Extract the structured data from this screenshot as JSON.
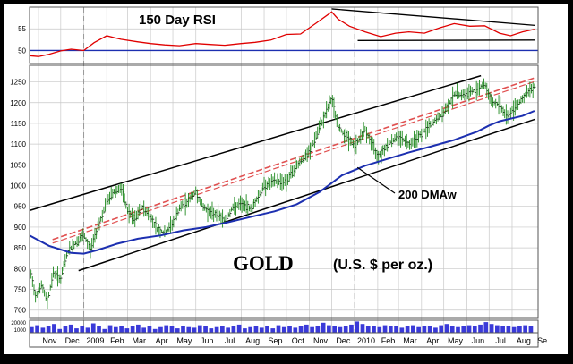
{
  "chart_data": [
    {
      "type": "line",
      "title": "150 Day RSI",
      "ylim": [
        47,
        60
      ],
      "y_ticks": [
        50,
        55
      ],
      "y_tick_labels": [
        "50",
        "55"
      ],
      "reference_line": 50,
      "series": [
        {
          "color": "#e00000",
          "x": [
            "2008-10-20",
            "2008-11-01",
            "2008-11-15",
            "2008-12-01",
            "2008-12-15",
            "2009-01-01",
            "2009-01-15",
            "2009-02-01",
            "2009-02-20",
            "2009-03-15",
            "2009-04-01",
            "2009-04-20",
            "2009-05-10",
            "2009-06-01",
            "2009-06-20",
            "2009-07-10",
            "2009-08-01",
            "2009-08-20",
            "2009-09-10",
            "2009-10-01",
            "2009-10-20",
            "2009-11-10",
            "2009-12-01",
            "2009-12-10",
            "2009-12-25",
            "2010-01-15",
            "2010-02-05",
            "2010-02-25",
            "2010-03-15",
            "2010-04-05",
            "2010-04-25",
            "2010-05-15",
            "2010-06-05",
            "2010-06-25",
            "2010-07-15",
            "2010-07-30",
            "2010-08-15",
            "2010-08-31"
          ],
          "values": [
            48.8,
            48.6,
            49.1,
            49.9,
            50.3,
            50.0,
            51.8,
            53.4,
            52.6,
            52.0,
            51.6,
            51.3,
            51.1,
            51.6,
            51.4,
            51.2,
            51.6,
            51.9,
            52.4,
            53.7,
            53.8,
            56.3,
            58.9,
            57.2,
            55.6,
            54.3,
            53.2,
            54.0,
            54.3,
            54.0,
            55.2,
            56.2,
            55.6,
            55.7,
            54.0,
            53.4,
            54.3,
            54.9
          ]
        }
      ],
      "trend_lines": [
        {
          "color": "#000000",
          "points": [
            [
              "2009-12-01",
              59.6
            ],
            [
              "2010-09-01",
              55.8
            ]
          ]
        },
        {
          "color": "#000000",
          "points": [
            [
              "2010-01-05",
              52.3
            ],
            [
              "2010-09-01",
              52.4
            ]
          ]
        }
      ]
    },
    {
      "type": "line",
      "title": "GOLD",
      "subtitle": "(U.S. $ per oz.)",
      "ylim": [
        680,
        1290
      ],
      "y_ticks": [
        700,
        750,
        800,
        850,
        900,
        950,
        1000,
        1050,
        1100,
        1150,
        1200,
        1250
      ],
      "y_tick_labels": [
        "700",
        "750",
        "800",
        "850",
        "900",
        "950",
        "1000",
        "1050",
        "1100",
        "1150",
        "1200",
        "1250"
      ],
      "series": [
        {
          "color": "#1f8a1f",
          "x": [
            "2008-10-20",
            "2008-10-28",
            "2008-11-05",
            "2008-11-13",
            "2008-11-21",
            "2008-12-01",
            "2008-12-10",
            "2008-12-20",
            "2009-01-01",
            "2009-01-10",
            "2009-01-20",
            "2009-02-01",
            "2009-02-10",
            "2009-02-20",
            "2009-03-01",
            "2009-03-10",
            "2009-03-20",
            "2009-04-01",
            "2009-04-10",
            "2009-04-20",
            "2009-05-01",
            "2009-05-10",
            "2009-05-20",
            "2009-06-01",
            "2009-06-10",
            "2009-06-20",
            "2009-07-01",
            "2009-07-10",
            "2009-07-20",
            "2009-08-01",
            "2009-08-15",
            "2009-09-01",
            "2009-09-15",
            "2009-10-01",
            "2009-10-15",
            "2009-11-01",
            "2009-11-15",
            "2009-12-01",
            "2009-12-10",
            "2009-12-20",
            "2010-01-01",
            "2010-01-15",
            "2010-02-01",
            "2010-02-15",
            "2010-03-01",
            "2010-03-15",
            "2010-04-01",
            "2010-04-15",
            "2010-05-01",
            "2010-05-15",
            "2010-06-01",
            "2010-06-15",
            "2010-06-25",
            "2010-07-05",
            "2010-07-15",
            "2010-07-25",
            "2010-08-05",
            "2010-08-15",
            "2010-08-25",
            "2010-08-31"
          ],
          "values": [
            800,
            735,
            760,
            720,
            790,
            775,
            840,
            860,
            880,
            845,
            900,
            960,
            985,
            995,
            940,
            915,
            950,
            925,
            895,
            885,
            910,
            945,
            960,
            985,
            950,
            935,
            930,
            915,
            945,
            955,
            945,
            1000,
            1010,
            1010,
            1050,
            1080,
            1140,
            1210,
            1140,
            1120,
            1095,
            1135,
            1070,
            1100,
            1120,
            1100,
            1125,
            1150,
            1175,
            1220,
            1220,
            1235,
            1245,
            1200,
            1195,
            1165,
            1190,
            1210,
            1230,
            1240
          ]
        },
        {
          "name": "200 DMAw",
          "color": "#1c2fb0",
          "x": [
            "2008-10-20",
            "2008-11-15",
            "2008-12-15",
            "2009-01-01",
            "2009-01-20",
            "2009-02-15",
            "2009-03-15",
            "2009-04-15",
            "2009-05-15",
            "2009-06-15",
            "2009-07-15",
            "2009-08-15",
            "2009-09-15",
            "2009-10-15",
            "2009-11-15",
            "2009-12-15",
            "2010-01-15",
            "2010-02-15",
            "2010-03-15",
            "2010-04-15",
            "2010-05-15",
            "2010-06-15",
            "2010-07-01",
            "2010-07-15",
            "2010-08-15",
            "2010-08-31"
          ],
          "values": [
            880,
            855,
            838,
            836,
            845,
            860,
            872,
            880,
            892,
            900,
            912,
            925,
            938,
            955,
            985,
            1025,
            1048,
            1065,
            1080,
            1095,
            1110,
            1130,
            1145,
            1155,
            1168,
            1180
          ]
        }
      ],
      "trend_lines": [
        {
          "color": "#000000",
          "points": [
            [
              "2008-10-20",
              940
            ],
            [
              "2010-06-20",
              1265
            ]
          ]
        },
        {
          "color": "#000000",
          "points": [
            [
              "2008-12-25",
              795
            ],
            [
              "2010-09-01",
              1160
            ]
          ]
        },
        {
          "color": "#e05050",
          "dashed": true,
          "points": [
            [
              "2008-11-20",
              870
            ],
            [
              "2010-09-01",
              1260
            ]
          ]
        }
      ],
      "annotation": "200 DMAw"
    },
    {
      "type": "bar",
      "title": "",
      "y_tick_labels": [
        "20000",
        "1000"
      ],
      "color": "#3a3ad8",
      "x_range": [
        "2008-10-20",
        "2010-08-31"
      ],
      "values": [
        0.45,
        0.6,
        0.4,
        0.55,
        0.7,
        0.3,
        0.5,
        0.65,
        0.35,
        0.55,
        0.4,
        0.75,
        0.5,
        0.3,
        0.6,
        0.45,
        0.55,
        0.35,
        0.5,
        0.65,
        0.4,
        0.55,
        0.3,
        0.45,
        0.6,
        0.5,
        0.35,
        0.55,
        0.45,
        0.4,
        0.6,
        0.5,
        0.35,
        0.45,
        0.55,
        0.4,
        0.5,
        0.65,
        0.35,
        0.45,
        0.55,
        0.4,
        0.5,
        0.35,
        0.6,
        0.45,
        0.55,
        0.4,
        0.5,
        0.65,
        0.45,
        0.55,
        0.8,
        0.6,
        0.5,
        0.45,
        0.55,
        0.65,
        0.9,
        0.7,
        0.55,
        0.5,
        0.45,
        0.6,
        0.55,
        0.5,
        0.4,
        0.55,
        0.6,
        0.45,
        0.5,
        0.55,
        0.4,
        0.6,
        0.7,
        0.55,
        0.45,
        0.5,
        0.6,
        0.55,
        0.65,
        0.85,
        0.7,
        0.6,
        0.55,
        0.5,
        0.45,
        0.55,
        0.6,
        0.5
      ]
    }
  ],
  "x_axis": {
    "ticks": [
      {
        "label": "Nov",
        "date": "2008-11-01"
      },
      {
        "label": "Dec",
        "date": "2008-12-01"
      },
      {
        "label": "2009",
        "date": "2009-01-01"
      },
      {
        "label": "Feb",
        "date": "2009-02-01"
      },
      {
        "label": "Mar",
        "date": "2009-03-01"
      },
      {
        "label": "Apr",
        "date": "2009-04-01"
      },
      {
        "label": "May",
        "date": "2009-05-01"
      },
      {
        "label": "Jun",
        "date": "2009-06-01"
      },
      {
        "label": "Jul",
        "date": "2009-07-01"
      },
      {
        "label": "Aug",
        "date": "2009-08-01"
      },
      {
        "label": "Sep",
        "date": "2009-09-01"
      },
      {
        "label": "Oct",
        "date": "2009-10-01"
      },
      {
        "label": "Nov",
        "date": "2009-11-01"
      },
      {
        "label": "Dec",
        "date": "2009-12-01"
      },
      {
        "label": "2010",
        "date": "2010-01-01"
      },
      {
        "label": "Feb",
        "date": "2010-02-01"
      },
      {
        "label": "Mar",
        "date": "2010-03-01"
      },
      {
        "label": "Apr",
        "date": "2010-04-01"
      },
      {
        "label": "May",
        "date": "2010-05-01"
      },
      {
        "label": "Jun",
        "date": "2010-06-01"
      },
      {
        "label": "Jul",
        "date": "2010-07-01"
      },
      {
        "label": "Aug",
        "date": "2010-08-01"
      },
      {
        "label": "Se",
        "date": "2010-09-01"
      }
    ],
    "year_markers": [
      "2009-01-01",
      "2010-01-01"
    ]
  },
  "colors": {
    "background": "#ffffff",
    "grid": "#c8c8c8",
    "rsi_line": "#e00000",
    "price_bars": "#1f8a1f",
    "moving_average": "#1c2fb0",
    "channel": "#000000",
    "midline": "#e05050",
    "volume": "#3a3ad8"
  }
}
